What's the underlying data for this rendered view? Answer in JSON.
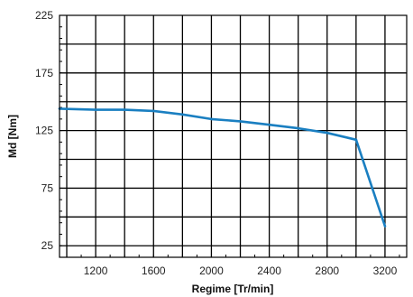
{
  "chart_data": {
    "type": "line",
    "title": "",
    "xlabel": "Regime [Tr/min]",
    "ylabel": "Md [Nm]",
    "xlim": [
      950,
      3350
    ],
    "ylim": [
      15,
      225
    ],
    "x_ticks": [
      1200,
      1600,
      2000,
      2400,
      2800,
      3200
    ],
    "y_ticks": [
      25,
      75,
      125,
      175,
      225
    ],
    "grid": true,
    "line_color": "#1a7fc1",
    "series": [
      {
        "name": "",
        "x": [
          950,
          1200,
          1400,
          1600,
          1800,
          2000,
          2200,
          2400,
          2600,
          2800,
          3000,
          3200
        ],
        "y": [
          144,
          143,
          143,
          142,
          139,
          135,
          133,
          130,
          127,
          123,
          117,
          42
        ]
      }
    ]
  }
}
